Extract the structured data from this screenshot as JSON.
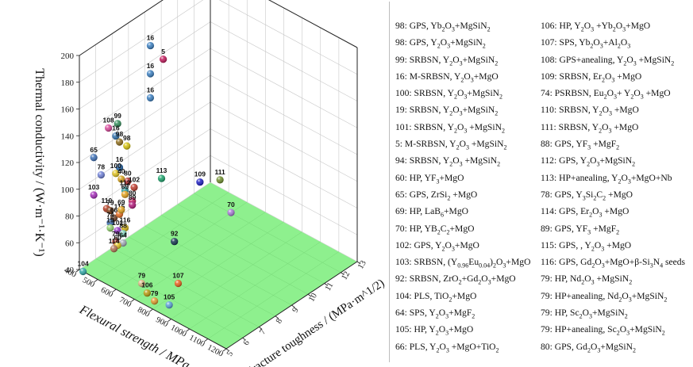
{
  "chart_data": {
    "type": "scatter",
    "title": "",
    "axes": {
      "x": {
        "label": "Flexural strength / MPa",
        "range": [
          400,
          1200
        ],
        "ticks": [
          "400",
          "500",
          "600",
          "700",
          "800",
          "900",
          "1000",
          "1100",
          "1200"
        ]
      },
      "y": {
        "label": "Fracture toughness / (MPa·m^1/2)",
        "range": [
          5,
          13
        ],
        "ticks": [
          "5",
          "6",
          "7",
          "8",
          "9",
          "10",
          "11",
          "12",
          "13"
        ]
      },
      "z": {
        "label": "Thermal conductivity / (W·m⁻¹·K⁻¹)",
        "range": [
          40,
          200
        ],
        "ticks": [
          "40",
          "60",
          "80",
          "100",
          "120",
          "140",
          "160",
          "180",
          "200"
        ]
      }
    },
    "points": [
      {
        "label": "16",
        "strength": 430,
        "toughness": 9,
        "tc": 177,
        "color": "#3a7fc1"
      },
      {
        "label": "16",
        "strength": 430,
        "toughness": 9,
        "tc": 156,
        "color": "#3a7fc1"
      },
      {
        "label": "16",
        "strength": 430,
        "toughness": 9,
        "tc": 138,
        "color": "#3a7fc1"
      },
      {
        "label": "5",
        "strength": 500,
        "toughness": 9,
        "tc": 172,
        "color": "#c2185b"
      },
      {
        "label": "99",
        "strength": 430,
        "toughness": 7,
        "tc": 135,
        "color": "#2e8b57"
      },
      {
        "label": "108",
        "strength": 380,
        "toughness": 7,
        "tc": 128,
        "color": "#d9479a"
      },
      {
        "label": "16",
        "strength": 420,
        "toughness": 7,
        "tc": 125,
        "color": "#2f73b0"
      },
      {
        "label": "98",
        "strength": 440,
        "toughness": 7,
        "tc": 122,
        "color": "#8f6d1c"
      },
      {
        "label": "98",
        "strength": 480,
        "toughness": 7,
        "tc": 122,
        "color": "#d4c10a"
      },
      {
        "label": "65",
        "strength": 300,
        "toughness": 7,
        "tc": 100,
        "color": "#3b6fb6"
      },
      {
        "label": "78",
        "strength": 340,
        "toughness": 7,
        "tc": 90,
        "color": "#6e7fd6"
      },
      {
        "label": "16",
        "strength": 440,
        "toughness": 7,
        "tc": 103,
        "color": "#1f63a8"
      },
      {
        "label": "100",
        "strength": 420,
        "toughness": 7,
        "tc": 97,
        "color": "#e0c21e"
      },
      {
        "label": "40",
        "strength": 450,
        "toughness": 7,
        "tc": 95,
        "color": "#d4a017"
      },
      {
        "label": "80",
        "strength": 485,
        "toughness": 7,
        "tc": 96,
        "color": "#b02a2a"
      },
      {
        "label": "102",
        "strength": 520,
        "toughness": 7,
        "tc": 94,
        "color": "#c0392b"
      },
      {
        "label": "113",
        "strength": 580,
        "toughness": 8,
        "tc": 97,
        "color": "#19a36a"
      },
      {
        "label": "112",
        "strength": 470,
        "toughness": 7,
        "tc": 88,
        "color": "#2e9e9e"
      },
      {
        "label": "69",
        "strength": 470,
        "toughness": 7,
        "tc": 85,
        "color": "#e4a21b"
      },
      {
        "label": "80",
        "strength": 510,
        "toughness": 7,
        "tc": 83,
        "color": "#c2185b"
      },
      {
        "label": "89",
        "strength": 510,
        "toughness": 7,
        "tc": 80,
        "color": "#b0177a"
      },
      {
        "label": "103",
        "strength": 300,
        "toughness": 7,
        "tc": 72,
        "color": "#a32ab8"
      },
      {
        "label": "110",
        "strength": 370,
        "toughness": 7,
        "tc": 67,
        "color": "#b33a20"
      },
      {
        "label": "79",
        "strength": 390,
        "toughness": 7,
        "tc": 67,
        "color": "#7a3a10"
      },
      {
        "label": "66",
        "strength": 410,
        "toughness": 7,
        "tc": 63,
        "color": "#6b3d24"
      },
      {
        "label": "115",
        "strength": 440,
        "toughness": 7,
        "tc": 68,
        "color": "#e86b1f"
      },
      {
        "label": "69",
        "strength": 450,
        "toughness": 7,
        "tc": 72,
        "color": "#e2a21b"
      },
      {
        "label": "74",
        "strength": 390,
        "toughness": 7,
        "tc": 58,
        "color": "#3b6fb6"
      },
      {
        "label": "19",
        "strength": 390,
        "toughness": 7,
        "tc": 54,
        "color": "#8fd16a"
      },
      {
        "label": "101",
        "strength": 430,
        "toughness": 7,
        "tc": 55,
        "color": "#8e2bc2"
      },
      {
        "label": "116",
        "strength": 470,
        "toughness": 7,
        "tc": 60,
        "color": "#d7b415"
      },
      {
        "label": "88",
        "strength": 460,
        "toughness": 7,
        "tc": 55,
        "color": "#7ad0b8"
      },
      {
        "label": "64",
        "strength": 460,
        "toughness": 7,
        "tc": 48,
        "color": "#9fa8b5"
      },
      {
        "label": "79",
        "strength": 420,
        "toughness": 7,
        "tc": 46,
        "color": "#c0392b"
      },
      {
        "label": "60",
        "strength": 430,
        "toughness": 7,
        "tc": 44,
        "color": "#e0c21e"
      },
      {
        "label": "114",
        "strength": 410,
        "toughness": 7,
        "tc": 40,
        "color": "#b07050"
      },
      {
        "label": "104",
        "strength": 420,
        "toughness": 5,
        "tc": 40,
        "color": "#2fa6a6"
      },
      {
        "label": "109",
        "strength": 700,
        "toughness": 9,
        "tc": 95,
        "color": "#1a1ac2"
      },
      {
        "label": "111",
        "strength": 720,
        "toughness": 10,
        "tc": 90,
        "color": "#6e8e2a"
      },
      {
        "label": "92",
        "strength": 650,
        "toughness": 8,
        "tc": 55,
        "color": "#12344f"
      },
      {
        "label": "70",
        "strength": 780,
        "toughness": 10,
        "tc": 70,
        "color": "#a77ad4"
      },
      {
        "label": "79",
        "strength": 650,
        "toughness": 6,
        "tc": 40,
        "color": "#d8b882"
      },
      {
        "label": "107",
        "strength": 760,
        "toughness": 7,
        "tc": 40,
        "color": "#e8601c"
      },
      {
        "label": "106",
        "strength": 680,
        "toughness": 6,
        "tc": 35,
        "color": "#b89a0c"
      },
      {
        "label": "79",
        "strength": 720,
        "toughness": 6,
        "tc": 32,
        "color": "#e09a2a"
      },
      {
        "label": "105",
        "strength": 800,
        "toughness": 6,
        "tc": 35,
        "color": "#5aa0d8"
      }
    ],
    "legend": [
      [
        "98: GPS, Yb",
        {
          "t": "2",
          "s": "sub"
        },
        "O",
        {
          "t": "3",
          "s": "sub"
        },
        "+MgSiN",
        {
          "t": "2",
          "s": "sub"
        }
      ],
      [
        "98: GPS, Y",
        {
          "t": "2",
          "s": "sub"
        },
        "O",
        {
          "t": "3",
          "s": "sub"
        },
        "+MgSiN",
        {
          "t": "2",
          "s": "sub"
        }
      ],
      [
        "99: SRBSN, Y",
        {
          "t": "2",
          "s": "sub"
        },
        "O",
        {
          "t": "3",
          "s": "sub"
        },
        "+MgSiN",
        {
          "t": "2",
          "s": "sub"
        }
      ],
      [
        "16: M-SRBSN, Y",
        {
          "t": "2",
          "s": "sub"
        },
        "O",
        {
          "t": "3",
          "s": "sub"
        },
        "+MgO"
      ],
      [
        "100: SRBSN, Y",
        {
          "t": "2",
          "s": "sub"
        },
        "O",
        {
          "t": "3",
          "s": "sub"
        },
        "+MgSiN",
        {
          "t": "2",
          "s": "sub"
        }
      ],
      [
        "19: SRBSN, Y",
        {
          "t": "2",
          "s": "sub"
        },
        "O",
        {
          "t": "3",
          "s": "sub"
        },
        "+MgSiN",
        {
          "t": "2",
          "s": "sub"
        }
      ],
      [
        "101: SRBSN, Y",
        {
          "t": "2",
          "s": "sub"
        },
        "O",
        {
          "t": "3",
          "s": "sub"
        },
        " +MgSiN",
        {
          "t": "2",
          "s": "sub"
        }
      ],
      [
        "5: M-SRBSN, Y",
        {
          "t": "2",
          "s": "sub"
        },
        "O",
        {
          "t": "3",
          "s": "sub"
        },
        " +MgSiN",
        {
          "t": "2",
          "s": "sub"
        }
      ],
      [
        "94: SRBSN, Y",
        {
          "t": "2",
          "s": "sub"
        },
        "O",
        {
          "t": "3",
          "s": "sub"
        },
        " +MgSiN",
        {
          "t": "2",
          "s": "sub"
        }
      ],
      [
        "60: HP, YF",
        {
          "t": "3",
          "s": "sub"
        },
        "+MgO"
      ],
      [
        "65: GPS, ZrSi",
        {
          "t": "2",
          "s": "sub"
        },
        " +MgO"
      ],
      [
        "69: HP, LaB",
        {
          "t": "6",
          "s": "sub"
        },
        "+MgO"
      ],
      [
        "70: HP, YB",
        {
          "t": "2",
          "s": "sub"
        },
        "C",
        {
          "t": "2",
          "s": "sub"
        },
        "+MgO"
      ],
      [
        "102: GPS, Y",
        {
          "t": "2",
          "s": "sub"
        },
        "O",
        {
          "t": "3",
          "s": "sub"
        },
        "+MgO"
      ],
      [
        "103: SRBSN, (Y",
        {
          "t": "0.96",
          "s": "sub"
        },
        "Eu",
        {
          "t": "0.04",
          "s": "sub"
        },
        ")",
        {
          "t": "2",
          "s": "sub"
        },
        "O",
        {
          "t": "3",
          "s": "sub"
        },
        "+MgO"
      ],
      [
        "92: SRBSN, ZrO",
        {
          "t": "2",
          "s": "sub"
        },
        "+Gd",
        {
          "t": "2",
          "s": "sub"
        },
        "O",
        {
          "t": "3",
          "s": "sub"
        },
        "+MgO"
      ],
      [
        "104: PLS, TiO",
        {
          "t": "2",
          "s": "sub"
        },
        "+MgO"
      ],
      [
        "64: SPS, Y",
        {
          "t": "2",
          "s": "sub"
        },
        "O",
        {
          "t": "3",
          "s": "sub"
        },
        "+MgF",
        {
          "t": "2",
          "s": "sub"
        }
      ],
      [
        "105: HP, Y",
        {
          "t": "2",
          "s": "sub"
        },
        "O",
        {
          "t": "3",
          "s": "sub"
        },
        "+MgO"
      ],
      [
        "66: PLS, Y",
        {
          "t": "2",
          "s": "sub"
        },
        "O",
        {
          "t": "3",
          "s": "sub"
        },
        " +MgO+TiO",
        {
          "t": "2",
          "s": "sub"
        }
      ],
      [
        "106: HP, Y",
        {
          "t": "2",
          "s": "sub"
        },
        "O",
        {
          "t": "3",
          "s": "sub"
        },
        " +Yb",
        {
          "t": "2",
          "s": "sub"
        },
        "O",
        {
          "t": "3",
          "s": "sub"
        },
        "+MgO"
      ],
      [
        "107: SPS, Yb",
        {
          "t": "2",
          "s": "sub"
        },
        "O",
        {
          "t": "3",
          "s": "sub"
        },
        "+Al",
        {
          "t": "2",
          "s": "sub"
        },
        "O",
        {
          "t": "3",
          "s": "sub"
        }
      ],
      [
        "108: GPS+anealing, Y",
        {
          "t": "2",
          "s": "sub"
        },
        "O",
        {
          "t": "3",
          "s": "sub"
        },
        " +MgSiN",
        {
          "t": "2",
          "s": "sub"
        }
      ],
      [
        "109: SRBSN, Er",
        {
          "t": "2",
          "s": "sub"
        },
        "O",
        {
          "t": "3",
          "s": "sub"
        },
        " +MgO"
      ],
      [
        "74: PSRBSN, Eu",
        {
          "t": "2",
          "s": "sub"
        },
        "O",
        {
          "t": "3",
          "s": "sub"
        },
        "+ Y",
        {
          "t": "2",
          "s": "sub"
        },
        "O",
        {
          "t": "3",
          "s": "sub"
        },
        " +MgO"
      ],
      [
        "110: SRBSN, Y",
        {
          "t": "2",
          "s": "sub"
        },
        "O",
        {
          "t": "3",
          "s": "sub"
        },
        " +MgO"
      ],
      [
        "111: SRBSN, Y",
        {
          "t": "2",
          "s": "sub"
        },
        "O",
        {
          "t": "3",
          "s": "sub"
        },
        " +MgO"
      ],
      [
        "88: GPS, YF",
        {
          "t": "3",
          "s": "sub"
        },
        " +MgF",
        {
          "t": "2",
          "s": "sub"
        }
      ],
      [
        "112: GPS, Y",
        {
          "t": "2",
          "s": "sub"
        },
        "O",
        {
          "t": "3",
          "s": "sub"
        },
        "+MgSiN",
        {
          "t": "2",
          "s": "sub"
        }
      ],
      [
        "113: HP+anealing, Y",
        {
          "t": "2",
          "s": "sub"
        },
        "O",
        {
          "t": "3",
          "s": "sub"
        },
        "+MgO+Nb"
      ],
      [
        "78: GPS, Y",
        {
          "t": "3",
          "s": "sub"
        },
        "Si",
        {
          "t": "2",
          "s": "sub"
        },
        "C",
        {
          "t": "2",
          "s": "sub"
        },
        " +MgO"
      ],
      [
        "114: GPS, Er",
        {
          "t": "2",
          "s": "sub"
        },
        "O",
        {
          "t": "3",
          "s": "sub"
        },
        " +MgO"
      ],
      [
        "89: GPS, YF",
        {
          "t": "3",
          "s": "sub"
        },
        " +MgF",
        {
          "t": "2",
          "s": "sub"
        }
      ],
      [
        "115: GPS, , Y",
        {
          "t": "2",
          "s": "sub"
        },
        "O",
        {
          "t": "3",
          "s": "sub"
        },
        " +MgO"
      ],
      [
        "116: GPS, Gd",
        {
          "t": "2",
          "s": "sub"
        },
        "O",
        {
          "t": "3",
          "s": "sub"
        },
        "+MgO+β-Si",
        {
          "t": "3",
          "s": "sub"
        },
        "N",
        {
          "t": "4",
          "s": "sub"
        },
        " seeds"
      ],
      [
        "79: HP, Nd",
        {
          "t": "2",
          "s": "sub"
        },
        "O",
        {
          "t": "3",
          "s": "sub"
        },
        " +MgSiN",
        {
          "t": "2",
          "s": "sub"
        }
      ],
      [
        "79: HP+anealing, Nd",
        {
          "t": "2",
          "s": "sub"
        },
        "O",
        {
          "t": "3",
          "s": "sub"
        },
        "+MgSiN",
        {
          "t": "2",
          "s": "sub"
        }
      ],
      [
        "79: HP, Sc",
        {
          "t": "2",
          "s": "sub"
        },
        "O",
        {
          "t": "3",
          "s": "sub"
        },
        "+MgSiN",
        {
          "t": "2",
          "s": "sub"
        }
      ],
      [
        "79: HP+anealing, Sc",
        {
          "t": "2",
          "s": "sub"
        },
        "O",
        {
          "t": "3",
          "s": "sub"
        },
        "+MgSiN",
        {
          "t": "2",
          "s": "sub"
        }
      ],
      [
        "80: GPS, Gd",
        {
          "t": "2",
          "s": "sub"
        },
        "O",
        {
          "t": "3",
          "s": "sub"
        },
        "+MgSiN",
        {
          "t": "2",
          "s": "sub"
        }
      ]
    ]
  },
  "colors": {
    "floor": "#8ef08e",
    "grid": "#c8c8c8",
    "axis": "#222222"
  }
}
